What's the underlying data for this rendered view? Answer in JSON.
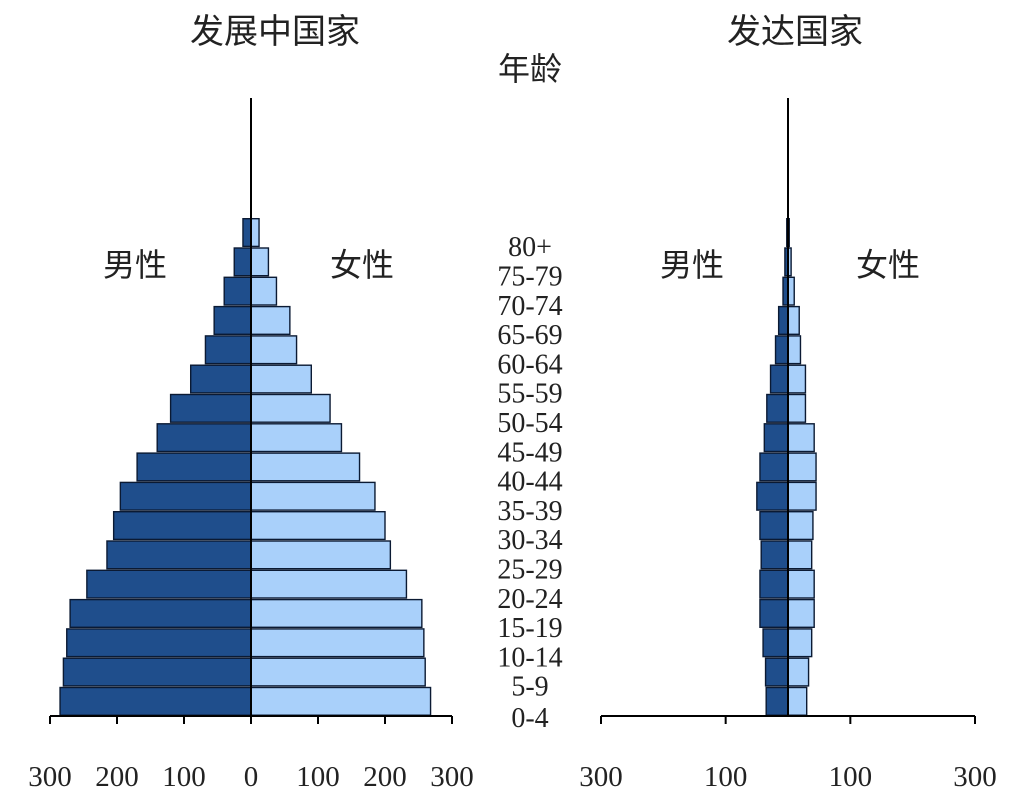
{
  "chart_data": [
    {
      "type": "bar",
      "title": "发展中国家",
      "center_label": "年龄",
      "left_label": "男性",
      "right_label": "女性",
      "age_groups": [
        "0-4",
        "5-9",
        "10-14",
        "15-19",
        "20-24",
        "25-29",
        "30-34",
        "35-39",
        "40-44",
        "45-49",
        "50-54",
        "55-59",
        "60-64",
        "65-69",
        "70-74",
        "75-79",
        "80+"
      ],
      "xlim": [
        -300,
        300
      ],
      "xticks": [
        -300,
        -200,
        -100,
        0,
        100,
        200,
        300
      ],
      "xtick_labels": [
        "300",
        "200",
        "100",
        "0",
        "100",
        "200",
        "300"
      ],
      "series": [
        {
          "name": "男性",
          "color": "#1f4e8c",
          "values": [
            285,
            280,
            275,
            270,
            245,
            215,
            205,
            195,
            170,
            140,
            120,
            90,
            68,
            55,
            40,
            25,
            12
          ]
        },
        {
          "name": "女性",
          "color": "#a9d0fa",
          "values": [
            268,
            260,
            258,
            255,
            232,
            208,
            200,
            185,
            162,
            135,
            118,
            90,
            68,
            58,
            38,
            26,
            12
          ]
        }
      ]
    },
    {
      "type": "bar",
      "title": "发达国家",
      "left_label": "男性",
      "right_label": "女性",
      "age_groups": [
        "0-4",
        "5-9",
        "10-14",
        "15-19",
        "20-24",
        "25-29",
        "30-34",
        "35-39",
        "40-44",
        "45-49",
        "50-54",
        "55-59",
        "60-64",
        "65-69",
        "70-74",
        "75-79",
        "80+"
      ],
      "xlim": [
        -300,
        300
      ],
      "xticks": [
        -300,
        -100,
        100,
        300
      ],
      "xtick_labels": [
        "300",
        "100",
        "100",
        "300"
      ],
      "series": [
        {
          "name": "男性",
          "color": "#1f4e8c",
          "values": [
            35,
            36,
            40,
            45,
            45,
            43,
            45,
            50,
            45,
            38,
            34,
            28,
            20,
            15,
            8,
            5,
            2
          ]
        },
        {
          "name": "女性",
          "color": "#a9d0fa",
          "values": [
            30,
            33,
            38,
            42,
            42,
            38,
            40,
            45,
            45,
            42,
            28,
            28,
            20,
            18,
            10,
            5,
            2
          ]
        }
      ]
    }
  ]
}
